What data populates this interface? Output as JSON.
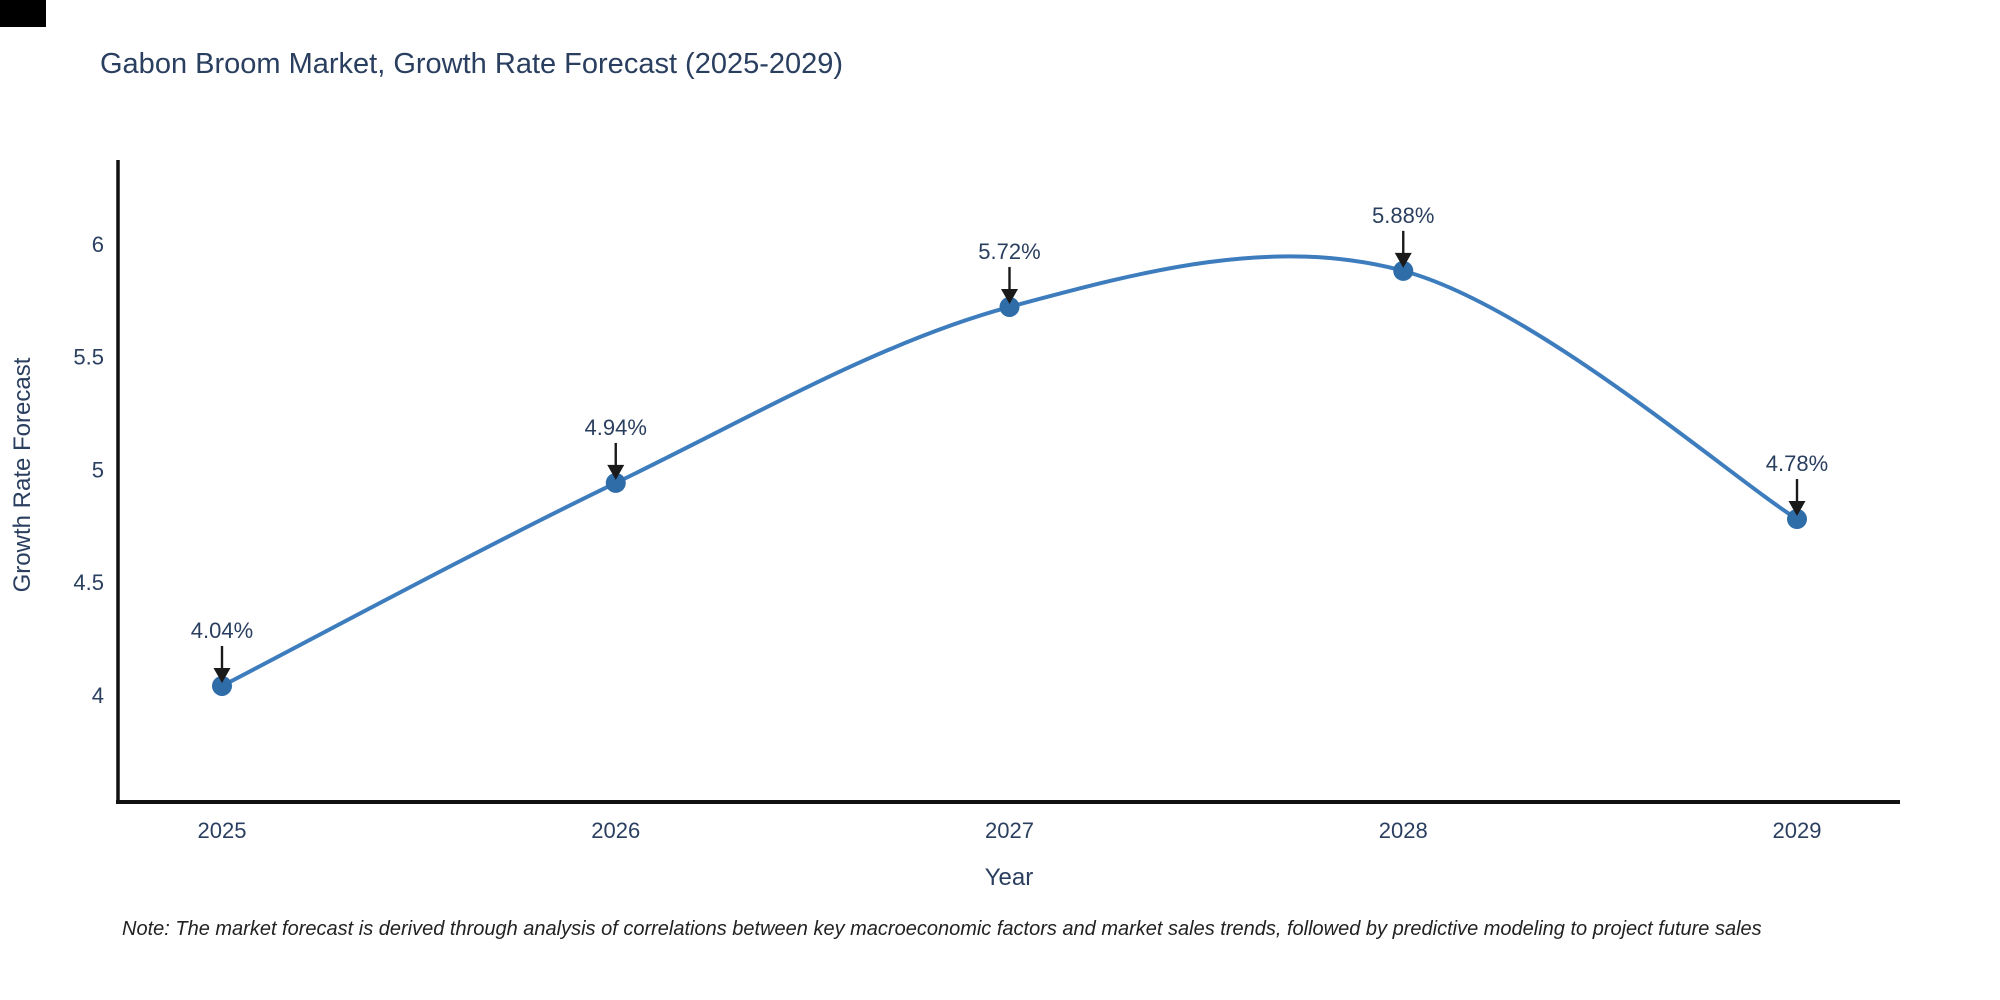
{
  "title": "Gabon Broom Market, Growth Rate Forecast (2025-2029)",
  "note": "Note: The market forecast is derived through analysis of correlations between key macroeconomic factors and market sales trends, followed by predictive modeling to project future sales",
  "chart_data": {
    "type": "line",
    "title": "Gabon Broom Market, Growth Rate Forecast (2025-2029)",
    "xlabel": "Year",
    "ylabel": "Growth Rate Forecast",
    "x": [
      2025,
      2026,
      2027,
      2028,
      2029
    ],
    "y": [
      4.04,
      4.94,
      5.72,
      5.88,
      4.78
    ],
    "point_labels": [
      "4.04%",
      "4.94%",
      "5.72%",
      "5.88%",
      "4.78%"
    ],
    "xtick_labels": [
      "2025",
      "2026",
      "2027",
      "2028",
      "2029"
    ],
    "yticks": [
      4,
      4.5,
      5,
      5.5,
      6
    ],
    "ytick_labels": [
      "4",
      "4.5",
      "5",
      "5.5",
      "6"
    ],
    "ylim": [
      3.5,
      6.4
    ],
    "line_shape": "spline",
    "grid": false,
    "legend": false,
    "line_color": "#3e7dbd",
    "marker_color": "#2f6da9",
    "axis_color": "#111111",
    "annotation_arrow_color": "#1a1a1a",
    "font_color": "#2a3f5f"
  }
}
